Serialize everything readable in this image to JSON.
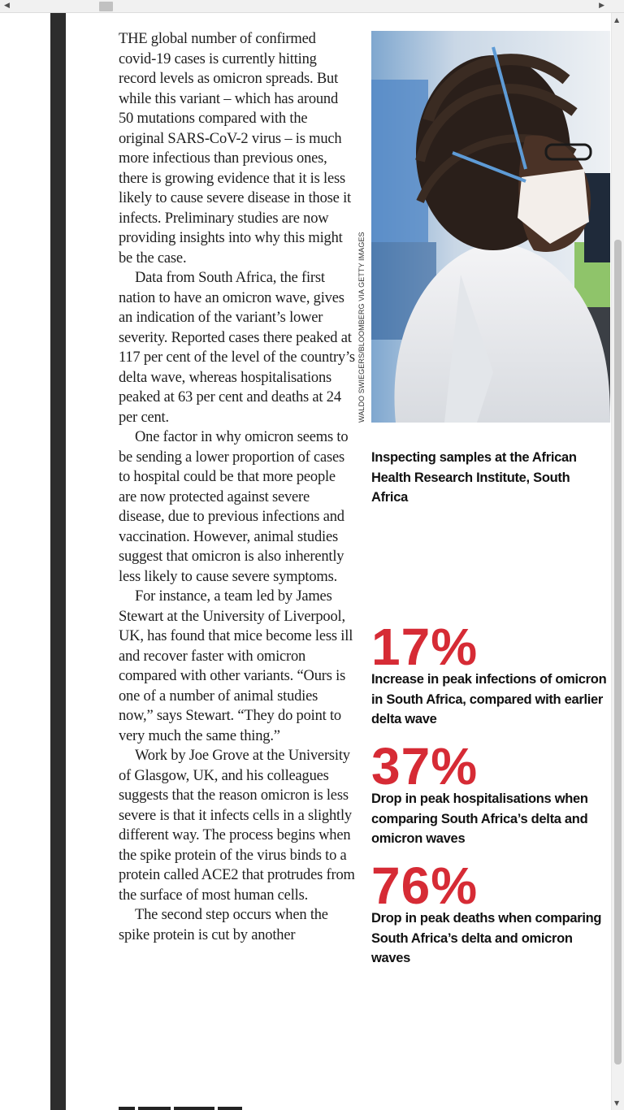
{
  "article": {
    "paragraphs": [
      "THE global number of confirmed covid-19 cases is currently hitting record levels as omicron spreads. But while this variant – which has around 50 mutations compared with the original SARS-CoV-2 virus – is much more infectious than previous ones, there is growing evidence that it is less likely to cause severe disease in those it infects. Preliminary studies are now providing insights into why this might be the case.",
      "Data from South Africa, the first nation to have an omicron wave, gives an indication of the variant’s lower severity. Reported cases there peaked at 117 per cent of the level of the country’s delta wave, whereas hospitalisations peaked at 63 per cent and deaths at 24 per cent.",
      "One factor in why omicron seems to be sending a lower proportion of cases to hospital could be that more people are now protected against severe disease, due to previous infections and vaccination. However, animal studies suggest that omicron is also inherently less likely to cause severe symptoms.",
      "For instance, a team led by James Stewart at the University of Liverpool, UK, has found that mice become less ill and recover faster with omicron compared with other variants. “Ours is one of a number of animal studies now,” says Stewart. “They do point to very much the same thing.”",
      "Work by Joe Grove at the University of Glasgow, UK, and his colleagues suggests that the reason omicron is less severe is that it infects cells in a slightly different way. The process begins when the spike protein of the virus binds to a protein called ACE2 that protrudes from the surface of most human cells.",
      "The second step occurs when the spike protein is cut by another"
    ]
  },
  "photo": {
    "credit": "WALDO SWIEGERS/BLOOMBERG VIA GETTY IMAGES",
    "caption": "Inspecting samples at the African Health Research Institute, South Africa"
  },
  "stats": [
    {
      "value": "17%",
      "description": "Increase in peak infections of omicron in South Africa, compared with earlier delta wave"
    },
    {
      "value": "37%",
      "description": "Drop in peak hospitalisations when comparing South Africa’s delta and omicron waves"
    },
    {
      "value": "76%",
      "description": "Drop in peak deaths when comparing South Africa’s delta and omicron waves"
    }
  ],
  "colors": {
    "accent": "#d62b35",
    "gutter": "#2d2d2d",
    "text": "#1e1e1e"
  }
}
